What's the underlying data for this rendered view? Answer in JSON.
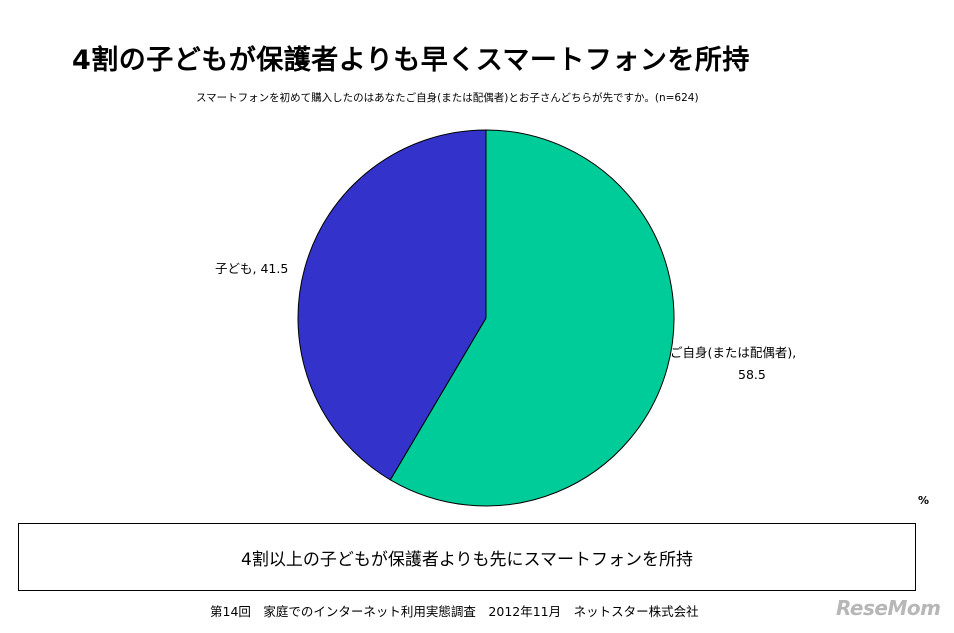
{
  "header": {
    "title": "4割の子どもが保護者よりも早くスマートフォンを所持",
    "subtitle": "スマートフォンを初めて購入したのはあなたご自身(または配偶者)とお子さんどちらが先ですか。(n=624)"
  },
  "chart_data": {
    "type": "pie",
    "title": "4割の子どもが保護者よりも早くスマートフォンを所持",
    "slices": [
      {
        "label": "ご自身(または配偶者)",
        "value": 58.5,
        "color": "#00cc99"
      },
      {
        "label": "子ども",
        "value": 41.5,
        "color": "#3333cc"
      }
    ],
    "unit": "%",
    "legend": "none"
  },
  "footer": {
    "unit_label": "%",
    "note": "4割以上の子どもが保護者よりも先にスマートフォンを所持",
    "source": "第14回　家庭でのインターネット利用実態調査　2012年11月　ネットスター株式会社",
    "logo_text": "ReseMom"
  }
}
